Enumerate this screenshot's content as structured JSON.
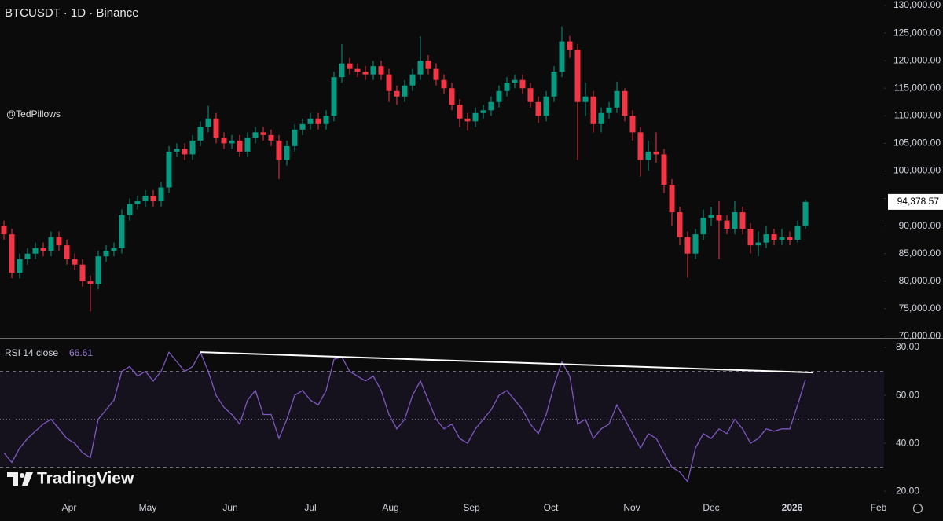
{
  "chart_data": {
    "type": "candlestick",
    "title": "BTCUSDT · 1D · Binance",
    "watermark": "@TedPillows",
    "brand": "TradingView",
    "up_color": "#089981",
    "down_color": "#f23645",
    "open": [
      90000,
      88500,
      81500,
      84000,
      85000,
      86000,
      85500,
      88000,
      86500,
      84000,
      83000,
      80000,
      79500,
      84500,
      85500,
      86000,
      92000,
      94000,
      94500,
      95500,
      94500,
      97000,
      103500,
      104000,
      103000,
      105500,
      108000,
      109500,
      106000,
      105000,
      105500,
      103500,
      106000,
      107000,
      106500,
      105500,
      102000,
      104500,
      107500,
      108500,
      109500,
      108500,
      110000,
      117000,
      119500,
      118500,
      118000,
      117500,
      119000,
      117500,
      114500,
      113500,
      115500,
      117500,
      120000,
      118500,
      116500,
      115000,
      112000,
      109500,
      109000,
      110500,
      111000,
      112500,
      114500,
      116000,
      116500,
      115000,
      112500,
      110000,
      113500,
      118000,
      123500,
      122000,
      112500,
      113500,
      108500,
      110500,
      111500,
      114500,
      110000,
      107000,
      102000,
      103500,
      103000,
      97500,
      92500,
      88000,
      85000,
      88500,
      91500,
      92000,
      91000,
      89500,
      92500,
      89500,
      86500,
      87000,
      88500,
      87500,
      88000,
      87500,
      90000
    ],
    "high": [
      91000,
      89500,
      85000,
      86000,
      87000,
      87000,
      89000,
      89000,
      87500,
      85000,
      84000,
      81000,
      85500,
      86500,
      87000,
      93000,
      95000,
      95500,
      96500,
      96500,
      98000,
      104500,
      105000,
      105000,
      106500,
      109000,
      111800,
      110500,
      107000,
      106500,
      106500,
      107000,
      108000,
      108000,
      107500,
      106500,
      105500,
      108500,
      109500,
      110500,
      110500,
      111000,
      118000,
      123000,
      120500,
      119500,
      119000,
      120000,
      120000,
      118500,
      115500,
      116500,
      118500,
      124400,
      121000,
      119500,
      117500,
      116000,
      113000,
      110500,
      111500,
      112000,
      113500,
      115500,
      117000,
      117500,
      117500,
      116000,
      113500,
      114500,
      119000,
      126200,
      124500,
      123000,
      116000,
      114500,
      111500,
      112500,
      116200,
      115000,
      111000,
      108000,
      105500,
      107000,
      104000,
      98500,
      93500,
      89000,
      89500,
      93000,
      93500,
      94500,
      92000,
      94500,
      93500,
      90500,
      89000,
      90000,
      89500,
      89500,
      89000,
      91000,
      94800
    ],
    "low": [
      87500,
      80500,
      80500,
      83000,
      84000,
      84500,
      84500,
      85500,
      83000,
      82000,
      79000,
      74500,
      78500,
      83500,
      84500,
      85000,
      91000,
      93000,
      93500,
      93500,
      93500,
      96000,
      102500,
      102000,
      102000,
      104500,
      107000,
      105000,
      104000,
      104000,
      102500,
      102500,
      105000,
      105500,
      104500,
      98500,
      101000,
      103500,
      106500,
      107500,
      107500,
      107500,
      109000,
      116000,
      117500,
      117000,
      116500,
      116500,
      116500,
      112500,
      112000,
      112500,
      114500,
      116500,
      117500,
      115500,
      114000,
      111000,
      108000,
      107300,
      108000,
      109500,
      110000,
      111500,
      113500,
      115000,
      114000,
      111500,
      108700,
      109000,
      112500,
      117000,
      120500,
      102000,
      110000,
      107000,
      107000,
      109500,
      110500,
      109000,
      105500,
      99000,
      100000,
      101500,
      96000,
      90000,
      86500,
      80600,
      84000,
      87500,
      90000,
      84000,
      88500,
      88500,
      88500,
      85000,
      84500,
      86000,
      86500,
      86500,
      86500,
      87000,
      89500
    ],
    "close": [
      88500,
      81500,
      84000,
      85000,
      86000,
      85500,
      88000,
      86500,
      84000,
      83000,
      80000,
      79500,
      84500,
      85500,
      86000,
      92000,
      94000,
      94500,
      95500,
      94500,
      97000,
      103500,
      104000,
      103000,
      105500,
      108000,
      109500,
      106000,
      105000,
      105500,
      103500,
      106000,
      107000,
      106500,
      105500,
      102000,
      104500,
      107500,
      108500,
      109500,
      108500,
      110000,
      117000,
      119500,
      118500,
      118000,
      117500,
      119000,
      117500,
      114500,
      113500,
      115500,
      117500,
      120000,
      118500,
      116500,
      115000,
      112000,
      109500,
      109000,
      110500,
      111000,
      112500,
      114500,
      116000,
      116500,
      115000,
      112500,
      110000,
      113500,
      118000,
      123500,
      122000,
      112500,
      113500,
      108500,
      110500,
      111500,
      114500,
      110000,
      107000,
      102000,
      103500,
      103000,
      97500,
      92500,
      88000,
      85000,
      88500,
      91500,
      92000,
      91000,
      89500,
      92500,
      89500,
      86500,
      87000,
      88500,
      87500,
      88000,
      87500,
      90000,
      94378.57
    ],
    "last_label": "94,378.57",
    "ylim": [
      69700,
      131000
    ],
    "yticks": [
      {
        "value": 70000,
        "label": "70,000.00"
      },
      {
        "value": 75000,
        "label": "75,000.00"
      },
      {
        "value": 80000,
        "label": "80,000.00"
      },
      {
        "value": 85000,
        "label": "85,000.00"
      },
      {
        "value": 90000,
        "label": "90,000.00"
      },
      {
        "value": 95000,
        "label": "95,000.00"
      },
      {
        "value": 100000,
        "label": "100,000.00"
      },
      {
        "value": 105000,
        "label": "105,000.00"
      },
      {
        "value": 110000,
        "label": "110,000.00"
      },
      {
        "value": 115000,
        "label": "115,000.00"
      },
      {
        "value": 120000,
        "label": "120,000.00"
      },
      {
        "value": 125000,
        "label": "125,000.00"
      },
      {
        "value": 130000,
        "label": "130,000.00"
      }
    ],
    "xlim": [
      -0.5,
      112
    ],
    "xticks": [
      {
        "value": 8.3,
        "label": "Apr"
      },
      {
        "value": 18.3,
        "label": "May"
      },
      {
        "value": 28.8,
        "label": "Jun"
      },
      {
        "value": 39,
        "label": "Jul"
      },
      {
        "value": 49.2,
        "label": "Aug"
      },
      {
        "value": 59.5,
        "label": "Sep"
      },
      {
        "value": 69.6,
        "label": "Oct"
      },
      {
        "value": 79.9,
        "label": "Nov"
      },
      {
        "value": 90,
        "label": "Dec"
      },
      {
        "value": 100.3,
        "label": "2026"
      },
      {
        "value": 111.3,
        "label": "Feb"
      }
    ],
    "rsi": {
      "title": "RSI 14 close",
      "color": "#7e57c2",
      "values": [
        36,
        32,
        38,
        42,
        45,
        48,
        50,
        46,
        42,
        40,
        36,
        34,
        50,
        54,
        58,
        70,
        72,
        68,
        70,
        66,
        70,
        78,
        74,
        70,
        72,
        78,
        70,
        60,
        55,
        52,
        48,
        58,
        62,
        52,
        52,
        42,
        50,
        60,
        62,
        58,
        56,
        62,
        75,
        76,
        70,
        68,
        66,
        68,
        62,
        52,
        46,
        50,
        60,
        66,
        58,
        50,
        46,
        48,
        42,
        40,
        46,
        50,
        54,
        60,
        62,
        58,
        54,
        48,
        44,
        52,
        64,
        74,
        68,
        48,
        50,
        42,
        46,
        48,
        56,
        50,
        44,
        38,
        44,
        42,
        36,
        30,
        28,
        24,
        38,
        44,
        42,
        46,
        44,
        50,
        46,
        40,
        42,
        46,
        45,
        46,
        46,
        56,
        66.61
      ],
      "ylim": [
        18.4,
        83.3
      ],
      "yticks": [
        {
          "value": 80,
          "label": "80.00"
        },
        {
          "value": 60,
          "label": "60.00"
        },
        {
          "value": 40,
          "label": "40.00"
        },
        {
          "value": 20,
          "label": "20.00"
        }
      ],
      "levels": [
        70,
        50,
        30
      ],
      "trendline": {
        "x": [
          25,
          103
        ],
        "y": [
          78,
          69.5
        ]
      }
    }
  }
}
